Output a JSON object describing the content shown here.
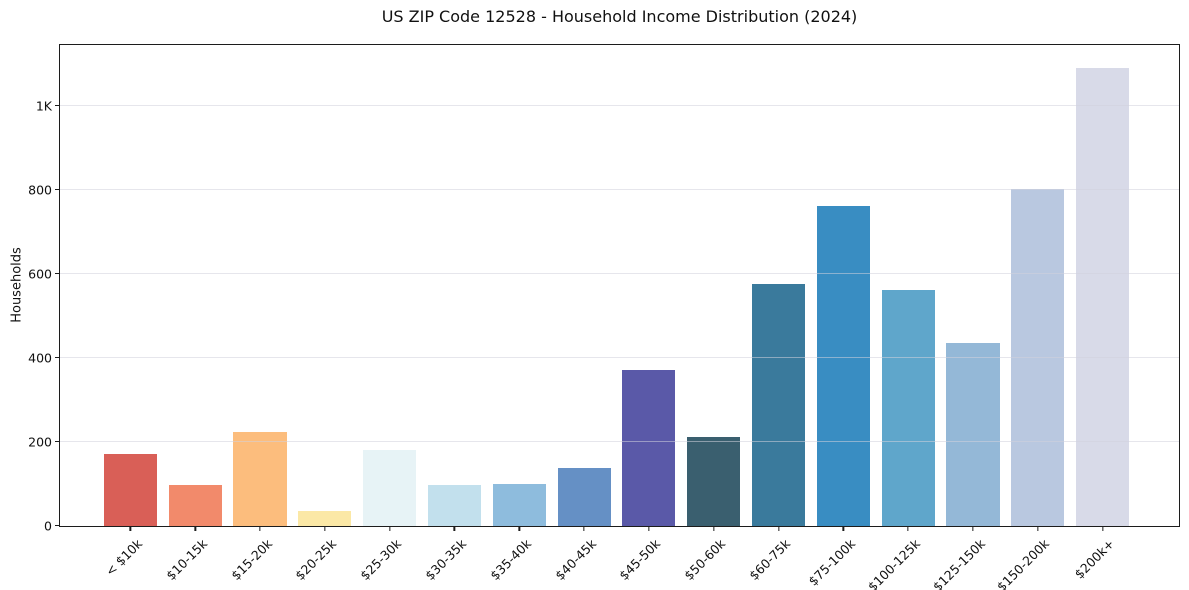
{
  "chart_data": {
    "type": "bar",
    "title": "US ZIP Code 12528 - Household Income Distribution (2024)",
    "xlabel": "",
    "ylabel": "Households",
    "categories": [
      "< $10k",
      "$10-15k",
      "$15-20k",
      "$20-25k",
      "$25-30k",
      "$30-35k",
      "$35-40k",
      "$40-45k",
      "$45-50k",
      "$50-60k",
      "$60-75k",
      "$75-100k",
      "$100-125k",
      "$125-150k",
      "$150-200k",
      "$200k+"
    ],
    "values": [
      171,
      97,
      225,
      35,
      182,
      97,
      101,
      138,
      371,
      212,
      577,
      762,
      562,
      437,
      803,
      1091
    ],
    "bar_colors": [
      "#d95f57",
      "#f28a6b",
      "#fcbd7d",
      "#fbe8a6",
      "#e7f3f6",
      "#c2e0ed",
      "#8ebcdd",
      "#6590c5",
      "#5a59a8",
      "#3a5f6f",
      "#3a7a9c",
      "#398dc2",
      "#5fa6cb",
      "#94b8d7",
      "#b9c8e0",
      "#d8dae8"
    ],
    "ylim": [
      0,
      1146
    ],
    "yticks": [
      {
        "value": 0,
        "label": "0"
      },
      {
        "value": 200,
        "label": "200"
      },
      {
        "value": 400,
        "label": "400"
      },
      {
        "value": 600,
        "label": "600"
      },
      {
        "value": 800,
        "label": "800"
      },
      {
        "value": 1000,
        "label": "1K"
      }
    ],
    "grid": "horizontal",
    "legend": "none",
    "colors": {
      "background": "#ffffff",
      "grid": "#e9e9ee",
      "spine": "#1c1c1c",
      "text": "#111111"
    }
  }
}
